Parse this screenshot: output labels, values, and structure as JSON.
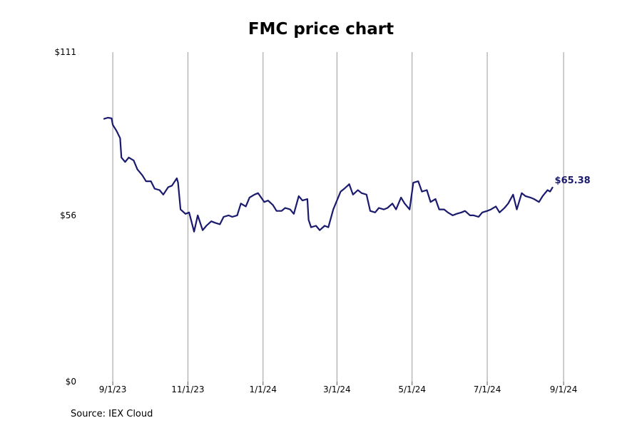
{
  "chart_data": {
    "type": "line",
    "title": "FMC price chart",
    "source": "Source: IEX Cloud",
    "y_ticks": [
      "$111",
      "$56",
      "$0"
    ],
    "y_tick_values": [
      111,
      56,
      0
    ],
    "ylim": [
      0,
      111
    ],
    "x_ticks": [
      "9/1/23",
      "11/1/23",
      "1/1/24",
      "3/1/24",
      "5/1/24",
      "7/1/24",
      "9/1/24"
    ],
    "x_tick_dates": [
      "2023-09-01",
      "2023-11-01",
      "2024-01-01",
      "2024-03-01",
      "2024-05-01",
      "2024-07-01",
      "2024-09-01"
    ],
    "xlim": [
      "2023-08-25",
      "2024-08-25"
    ],
    "grid": "vertical",
    "line_color": "#1a1a6e",
    "last_value_label": "$65.38",
    "series": [
      {
        "x": [
          "2023-08-25",
          "2023-08-28",
          "2023-08-31",
          "2023-09-01",
          "2023-09-04",
          "2023-09-07",
          "2023-09-08",
          "2023-09-11",
          "2023-09-14",
          "2023-09-18",
          "2023-09-21",
          "2023-09-25",
          "2023-09-28",
          "2023-10-02",
          "2023-10-05",
          "2023-10-09",
          "2023-10-12",
          "2023-10-16",
          "2023-10-19",
          "2023-10-23",
          "2023-10-24",
          "2023-10-26",
          "2023-10-30",
          "2023-11-02",
          "2023-11-06",
          "2023-11-09",
          "2023-11-13",
          "2023-11-16",
          "2023-11-20",
          "2023-11-23",
          "2023-11-27",
          "2023-11-30",
          "2023-12-04",
          "2023-12-07",
          "2023-12-11",
          "2023-12-14",
          "2023-12-18",
          "2023-12-21",
          "2023-12-25",
          "2023-12-28",
          "2024-01-02",
          "2024-01-05",
          "2024-01-09",
          "2024-01-12",
          "2024-01-16",
          "2024-01-19",
          "2024-01-23",
          "2024-01-26",
          "2024-01-30",
          "2024-02-02",
          "2024-02-06",
          "2024-02-07",
          "2024-02-09",
          "2024-02-13",
          "2024-02-16",
          "2024-02-20",
          "2024-02-23",
          "2024-02-27",
          "2024-02-29",
          "2024-03-04",
          "2024-03-07",
          "2024-03-11",
          "2024-03-14",
          "2024-03-18",
          "2024-03-21",
          "2024-03-25",
          "2024-03-28",
          "2024-04-01",
          "2024-04-04",
          "2024-04-08",
          "2024-04-11",
          "2024-04-15",
          "2024-04-18",
          "2024-04-22",
          "2024-04-25",
          "2024-04-29",
          "2024-05-02",
          "2024-05-06",
          "2024-05-09",
          "2024-05-13",
          "2024-05-16",
          "2024-05-20",
          "2024-05-23",
          "2024-05-27",
          "2024-05-30",
          "2024-06-03",
          "2024-06-06",
          "2024-06-10",
          "2024-06-13",
          "2024-06-17",
          "2024-06-20",
          "2024-06-24",
          "2024-06-27",
          "2024-07-01",
          "2024-07-04",
          "2024-07-08",
          "2024-07-11",
          "2024-07-15",
          "2024-07-18",
          "2024-07-22",
          "2024-07-25",
          "2024-07-29",
          "2024-08-01",
          "2024-08-05",
          "2024-08-08",
          "2024-08-12",
          "2024-08-15",
          "2024-08-19",
          "2024-08-21",
          "2024-08-23"
        ],
        "y": [
          88.5,
          88.9,
          88.7,
          86.5,
          84.5,
          82.0,
          75.5,
          74.0,
          75.5,
          74.5,
          71.5,
          69.5,
          67.5,
          67.5,
          65.0,
          64.5,
          63.0,
          65.5,
          66.0,
          68.5,
          67.0,
          58.0,
          56.5,
          57.0,
          50.5,
          56.0,
          51.0,
          52.5,
          54.0,
          53.5,
          53.0,
          55.5,
          56.0,
          55.5,
          56.0,
          60.0,
          59.0,
          62.0,
          63.0,
          63.5,
          60.5,
          61.0,
          59.5,
          57.5,
          57.5,
          58.5,
          58.0,
          56.5,
          62.5,
          61.0,
          61.5,
          54.5,
          52.0,
          52.5,
          51.0,
          52.5,
          52.0,
          58.0,
          60.0,
          64.0,
          65.0,
          66.5,
          63.0,
          64.5,
          63.5,
          63.0,
          57.5,
          57.0,
          58.5,
          58.0,
          58.5,
          60.0,
          58.0,
          62.0,
          60.0,
          58.0,
          67.0,
          67.5,
          64.0,
          64.5,
          60.5,
          61.5,
          58.0,
          58.0,
          57.0,
          56.0,
          56.5,
          57.0,
          57.5,
          56.0,
          56.0,
          55.5,
          57.0,
          57.5,
          58.0,
          59.0,
          57.0,
          58.5,
          60.0,
          63.0,
          58.0,
          63.5,
          62.5,
          62.0,
          61.5,
          60.5,
          62.5,
          64.5,
          64.0,
          65.38
        ]
      }
    ]
  }
}
